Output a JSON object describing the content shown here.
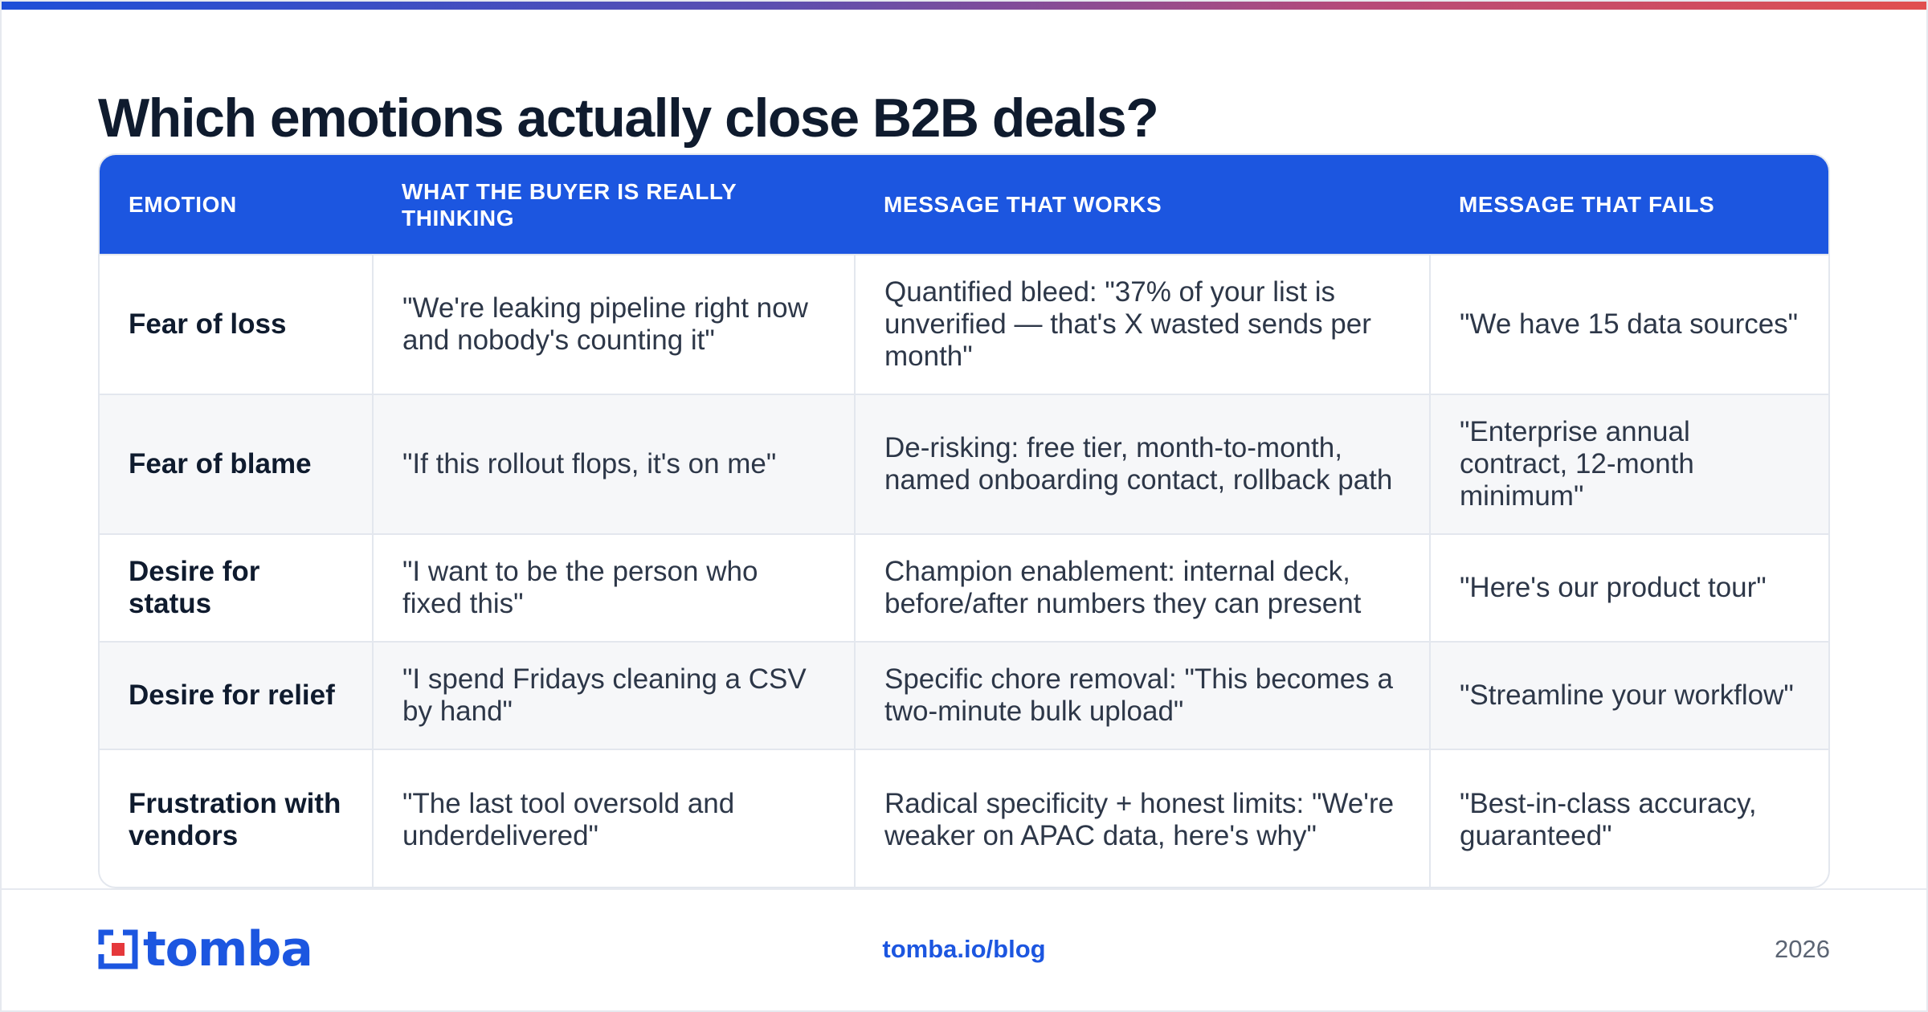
{
  "header": {
    "title": "Which emotions actually close B2B deals?"
  },
  "table": {
    "columns": [
      "EMOTION",
      "WHAT THE BUYER IS REALLY THINKING",
      "MESSAGE THAT WORKS",
      "MESSAGE THAT FAILS"
    ],
    "rows": [
      {
        "emotion": "Fear of loss",
        "thinking": "\"We're leaking pipeline right now and nobody's counting it\"",
        "works": "Quantified bleed: \"37% of your list is unverified — that's X wasted sends per month\"",
        "fails": "\"We have 15 data sources\""
      },
      {
        "emotion": "Fear of blame",
        "thinking": "\"If this rollout flops, it's on me\"",
        "works": "De-risking: free tier, month-to-month, named onboarding contact, rollback path",
        "fails": "\"Enterprise annual contract, 12-month minimum\""
      },
      {
        "emotion": "Desire for status",
        "thinking": "\"I want to be the person who fixed this\"",
        "works": "Champion enablement: internal deck, before/after numbers they can present",
        "fails": "\"Here's our product tour\""
      },
      {
        "emotion": "Desire for relief",
        "thinking": "\"I spend Fridays cleaning a CSV by hand\"",
        "works": "Specific chore removal: \"This becomes a two-minute bulk upload\"",
        "fails": "\"Streamline your workflow\""
      },
      {
        "emotion": "Frustration with vendors",
        "thinking": "\"The last tool oversold and underdelivered\"",
        "works": "Radical specificity + honest limits: \"We're weaker on APAC data, here's why\"",
        "fails": "\"Best-in-class accuracy, guaranteed\""
      }
    ]
  },
  "footer": {
    "logo_text": "tomba",
    "url": "tomba.io/blog",
    "year": "2026"
  },
  "colors": {
    "accent": "#1c56e0",
    "alt_row": "#f6f7f9",
    "logo_red": "#e5383b"
  }
}
